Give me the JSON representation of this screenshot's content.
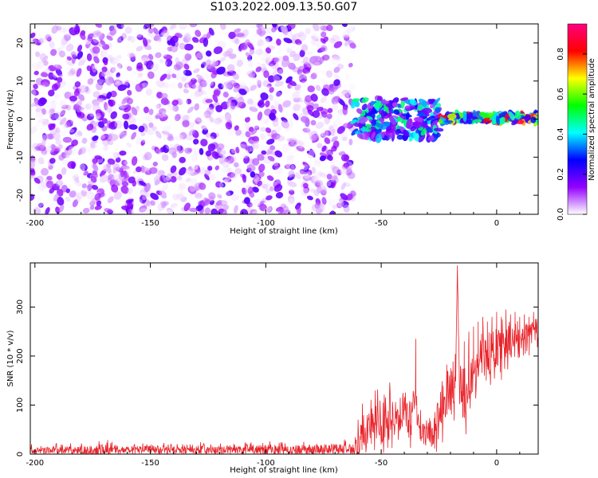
{
  "title": "S103.2022.009.13.50.G07",
  "chart_data": [
    {
      "type": "heatmap",
      "xlabel": "Height of straight line (km)",
      "ylabel": "Frequency (Hz)",
      "xlim": [
        -202,
        18
      ],
      "ylim": [
        -25,
        25
      ],
      "x_ticks": [
        -200,
        -150,
        -100,
        -50,
        0
      ],
      "x_tick_labels": [
        "-200",
        "-150",
        "-100",
        "-50",
        "0"
      ],
      "y_ticks": [
        -20,
        -10,
        0,
        10,
        20
      ],
      "y_tick_labels": [
        "-20",
        "-10",
        "0",
        "10",
        "20"
      ],
      "colorbar": {
        "label": "Normalized spectral amplitude",
        "range": [
          0.0,
          0.95
        ],
        "ticks": [
          0.0,
          0.2,
          0.4,
          0.6,
          0.8
        ],
        "tick_labels": [
          "0.0",
          "0.2",
          "0.4",
          "0.6",
          "0.8"
        ],
        "colors": [
          "#ffffff",
          "#9400ff",
          "#0000ff",
          "#00ffff",
          "#00ff00",
          "#ffff00",
          "#ff0000",
          "#ff0080"
        ]
      },
      "regions": [
        {
          "x_range": [
            -202,
            -62
          ],
          "freq_range": [
            -25,
            25
          ],
          "amplitude": [
            0.0,
            0.2
          ]
        },
        {
          "x_range": [
            -62,
            -25
          ],
          "freq_range": [
            -6,
            6
          ],
          "amplitude": [
            0.1,
            0.5
          ]
        },
        {
          "x_range": [
            -25,
            18
          ],
          "freq_range": [
            -1.5,
            2
          ],
          "amplitude": [
            0.2,
            0.9
          ]
        }
      ],
      "grid": false
    },
    {
      "type": "line",
      "xlabel": "Height of straight line (km)",
      "ylabel": "SNR (10 * v/v)",
      "xlim": [
        -202,
        18
      ],
      "ylim": [
        0,
        390
      ],
      "x_ticks": [
        -200,
        -150,
        -100,
        -50,
        0
      ],
      "x_tick_labels": [
        "-200",
        "-150",
        "-100",
        "-50",
        "0"
      ],
      "y_ticks": [
        0,
        100,
        200,
        300
      ],
      "y_tick_labels": [
        "0",
        "100",
        "200",
        "300"
      ],
      "series": [
        {
          "color": "#e8242b",
          "x": [
            -202,
            -190,
            -180,
            -170,
            -160,
            -150,
            -140,
            -130,
            -120,
            -110,
            -100,
            -90,
            -80,
            -70,
            -62,
            -60,
            -58,
            -56,
            -54,
            -52,
            -50,
            -48,
            -46,
            -44,
            -42,
            -40,
            -38,
            -36,
            -35,
            -34,
            -32,
            -30,
            -28,
            -26,
            -24,
            -22,
            -20,
            -18,
            -17,
            -16,
            -14,
            -12,
            -10,
            -8,
            -6,
            -4,
            -2,
            0,
            2,
            4,
            6,
            8,
            10,
            12,
            14,
            16,
            18
          ],
          "y": [
            8,
            9,
            8,
            9,
            8,
            9,
            8,
            9,
            8,
            9,
            9,
            8,
            9,
            10,
            10,
            20,
            45,
            60,
            55,
            70,
            50,
            65,
            80,
            60,
            75,
            90,
            70,
            85,
            150,
            60,
            40,
            50,
            45,
            70,
            90,
            110,
            120,
            130,
            380,
            140,
            120,
            150,
            170,
            180,
            200,
            190,
            210,
            220,
            215,
            230,
            225,
            240,
            230,
            245,
            240,
            250,
            240
          ],
          "envelope": [
            20,
            22,
            25,
            30,
            22,
            25,
            22,
            25,
            22,
            25,
            30,
            25,
            25,
            30,
            30,
            90,
            110,
            130,
            120,
            140,
            120,
            130,
            160,
            110,
            130,
            140,
            130,
            170,
            235,
            110,
            80,
            90,
            110,
            140,
            170,
            190,
            200,
            220,
            385,
            220,
            230,
            250,
            260,
            270,
            280,
            270,
            280,
            290,
            280,
            295,
            285,
            290,
            280,
            285,
            280,
            290,
            285
          ]
        }
      ],
      "grid": false
    }
  ]
}
